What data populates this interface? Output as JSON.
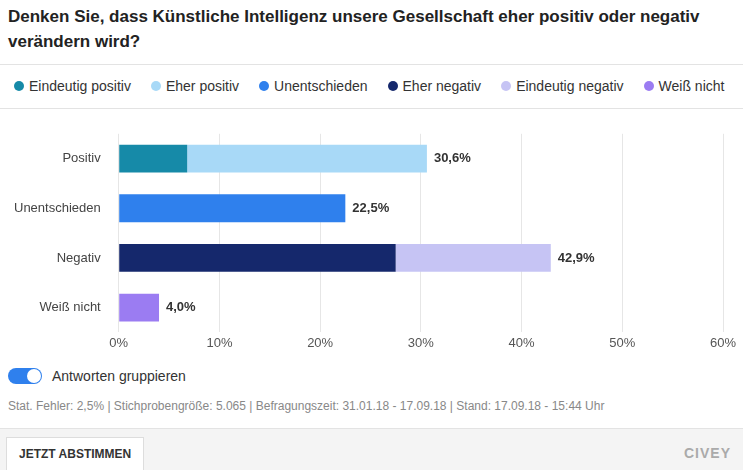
{
  "chart_data": {
    "type": "bar",
    "title": "Denken Sie, dass Künstliche Intelligenz unsere Gesellschaft eher positiv oder negativ verändern wird?",
    "orientation": "horizontal",
    "stacked": true,
    "grid": true,
    "categories": [
      "Positiv",
      "Unentschieden",
      "Negativ",
      "Weiß nicht"
    ],
    "series": [
      {
        "name": "Eindeutig positiv",
        "color": "#168aa8",
        "values": [
          6.8,
          null,
          null,
          null
        ]
      },
      {
        "name": "Eher positiv",
        "color": "#a8d9f7",
        "values": [
          23.8,
          null,
          null,
          null
        ]
      },
      {
        "name": "Unentschieden",
        "color": "#2f80ed",
        "values": [
          null,
          22.5,
          null,
          null
        ]
      },
      {
        "name": "Eher negativ",
        "color": "#15286c",
        "values": [
          null,
          null,
          27.5,
          null
        ]
      },
      {
        "name": "Eindeutig negativ",
        "color": "#c6c4f4",
        "values": [
          null,
          null,
          15.4,
          null
        ]
      },
      {
        "name": "Weiß nicht",
        "color": "#9b7cf2",
        "values": [
          null,
          null,
          null,
          4.0
        ]
      }
    ],
    "totals": [
      30.6,
      22.5,
      42.9,
      4.0
    ],
    "total_labels": [
      "30,6%",
      "22,5%",
      "42,9%",
      "4,0%"
    ],
    "xlim": [
      0,
      60
    ],
    "xticks": [
      {
        "value": 0,
        "label": "0%"
      },
      {
        "value": 10,
        "label": "10%"
      },
      {
        "value": 20,
        "label": "20%"
      },
      {
        "value": 30,
        "label": "30%"
      },
      {
        "value": 40,
        "label": "40%"
      },
      {
        "value": 50,
        "label": "50%"
      },
      {
        "value": 60,
        "label": "60%"
      }
    ]
  },
  "toggle_label": "Antworten gruppieren",
  "footer": "Stat. Fehler: 2,5% | Stichprobengröße: 5.065 | Befragungszeit: 31.01.18 - 17.09.18 | Stand: 17.09.18 - 15:44 Uhr",
  "button": "JETZT ABSTIMMEN",
  "brand": "CIVEY"
}
